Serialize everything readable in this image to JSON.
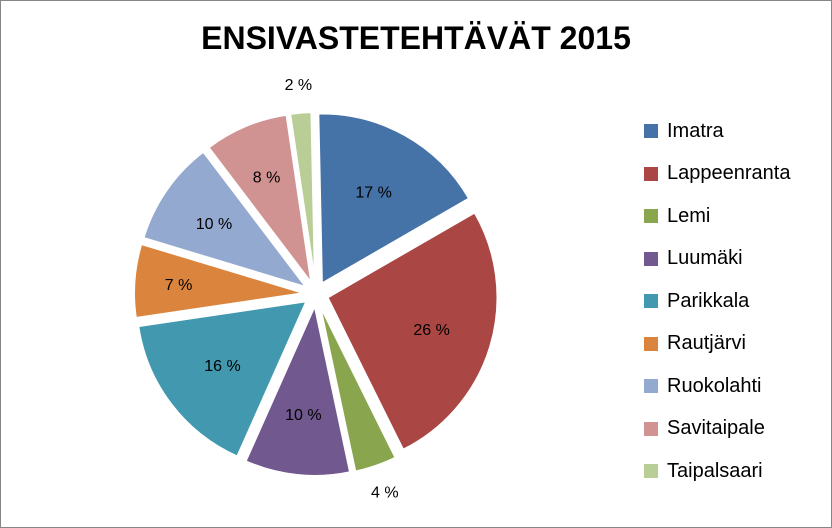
{
  "chart_data": {
    "type": "pie",
    "title": "ENSIVASTETEHTÄVÄT  2015",
    "exploded": true,
    "legend_position": "right",
    "slices": [
      {
        "label": "Imatra",
        "value": 17,
        "data_label": "17 %",
        "color": "#4572A7"
      },
      {
        "label": "Lappeenranta",
        "value": 26,
        "data_label": "26 %",
        "color": "#AA4643"
      },
      {
        "label": "Lemi",
        "value": 4,
        "data_label": "4 %",
        "color": "#89A54E"
      },
      {
        "label": "Luumäki",
        "value": 10,
        "data_label": "10 %",
        "color": "#71588F"
      },
      {
        "label": "Parikkala",
        "value": 16,
        "data_label": "16 %",
        "color": "#4198AF"
      },
      {
        "label": "Rautjärvi",
        "value": 7,
        "data_label": "7 %",
        "color": "#DB843D"
      },
      {
        "label": "Ruokolahti",
        "value": 10,
        "data_label": "10 %",
        "color": "#93A9CF"
      },
      {
        "label": "Savitaipale",
        "value": 8,
        "data_label": "8 %",
        "color": "#D19392"
      },
      {
        "label": "Taipalsaari",
        "value": 2,
        "data_label": "2 %",
        "color": "#B9CD96"
      }
    ]
  }
}
